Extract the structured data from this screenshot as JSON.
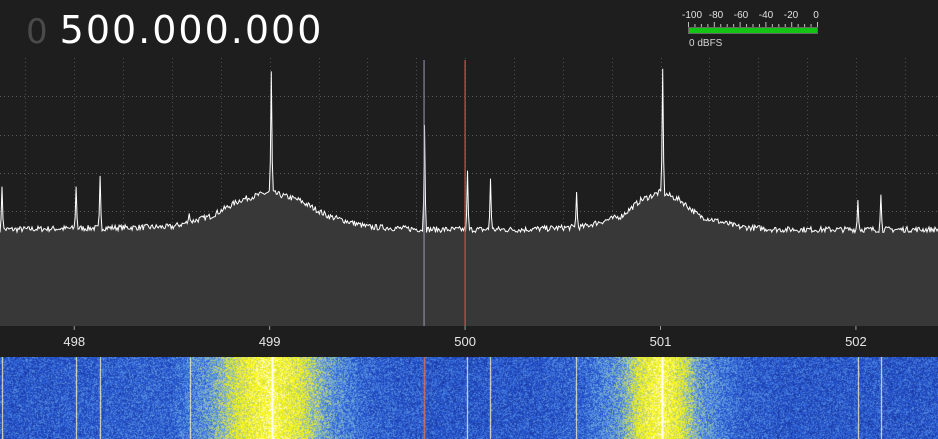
{
  "frequency": {
    "prefix": "0",
    "value": "500.000.000"
  },
  "level_meter": {
    "scale_labels": [
      "-100",
      "-80",
      "-60",
      "-40",
      "-20",
      "0"
    ],
    "readout": "0 dBFS",
    "level_fraction": 1.0,
    "bar_color": "#14c414"
  },
  "spectrum": {
    "axis_labels": [
      "498",
      "499",
      "500",
      "501",
      "502"
    ],
    "x_range_mhz": [
      497.62,
      502.42
    ],
    "center_mhz": 500.0,
    "marker_mhz": 499.79,
    "colors": {
      "trace": "#ffffff",
      "fill": "#383838",
      "background": "#1f1e1f",
      "center_line": "#d05050",
      "marker_line": "#9a9ab4"
    }
  },
  "chart_data": {
    "type": "line",
    "xlabel": "",
    "ylabel": "",
    "xlim": [
      497.62,
      502.42
    ],
    "ylim": [
      0,
      1
    ],
    "x_ticks": [
      "498",
      "499",
      "500",
      "501",
      "502"
    ],
    "grid": true,
    "noise_floor": 0.36,
    "series": [
      {
        "x": [
          497.62,
          498.5,
          498.7,
          498.85,
          499.0,
          499.15,
          499.3,
          499.5,
          499.8,
          500.3,
          500.6,
          500.8,
          500.9,
          501.0,
          501.1,
          501.2,
          501.4,
          501.6,
          502.0,
          502.42
        ],
        "y": [
          0.36,
          0.37,
          0.41,
          0.47,
          0.5,
          0.47,
          0.41,
          0.37,
          0.36,
          0.36,
          0.37,
          0.41,
          0.47,
          0.5,
          0.47,
          0.41,
          0.37,
          0.36,
          0.36,
          0.36
        ]
      }
    ],
    "peaks": [
      {
        "x": 497.63,
        "y": 0.52
      },
      {
        "x": 498.01,
        "y": 0.52
      },
      {
        "x": 498.13,
        "y": 0.56
      },
      {
        "x": 498.59,
        "y": 0.42
      },
      {
        "x": 499.01,
        "y": 0.95
      },
      {
        "x": 499.79,
        "y": 0.75
      },
      {
        "x": 500.01,
        "y": 0.58
      },
      {
        "x": 500.13,
        "y": 0.55
      },
      {
        "x": 500.57,
        "y": 0.5
      },
      {
        "x": 501.01,
        "y": 0.96
      },
      {
        "x": 502.01,
        "y": 0.47
      },
      {
        "x": 502.13,
        "y": 0.49
      }
    ]
  }
}
